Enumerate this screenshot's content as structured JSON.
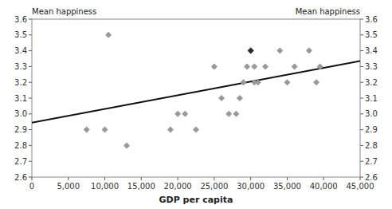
{
  "chart_data": {
    "type": "scatter",
    "xlabel": "GDP per capita",
    "ylabel": "Mean happiness",
    "y2label": "Mean happiness",
    "grid": false,
    "series": [
      {
        "type": "scatter",
        "color": "#999999",
        "marker": "diamond",
        "x": [
          7500,
          10000,
          10500,
          13000,
          19000,
          20000,
          21000,
          22500,
          25000,
          26000,
          27000,
          28000,
          28500,
          29000,
          29500,
          30000,
          30500,
          30500,
          31000,
          32000,
          34000,
          35000,
          36000,
          38000,
          39000,
          39500
        ],
        "values": [
          2.9,
          2.9,
          3.5,
          2.8,
          2.9,
          3.0,
          3.0,
          2.9,
          3.3,
          3.1,
          3.0,
          3.0,
          3.1,
          3.2,
          3.3,
          3.4,
          3.3,
          3.2,
          3.2,
          3.3,
          3.4,
          3.2,
          3.3,
          3.4,
          3.2,
          3.3
        ]
      },
      {
        "type": "scatter",
        "color": "#2b2b2b",
        "marker": "diamond",
        "x": [
          30000
        ],
        "values": [
          3.4
        ]
      },
      {
        "type": "line",
        "color": "#111111",
        "line_style": "solid",
        "x": [
          0,
          45000
        ],
        "values": [
          2.945,
          3.335
        ]
      }
    ],
    "xlim": [
      0,
      45000
    ],
    "xticks": [
      0,
      {
        "value": 5000,
        "label": "5,000"
      },
      {
        "value": 10000,
        "label": "10,000"
      },
      {
        "value": 15000,
        "label": "15,000"
      },
      {
        "value": 20000,
        "label": "20,000"
      },
      {
        "value": 25000,
        "label": "25,000"
      },
      {
        "value": 30000,
        "label": "30,000"
      },
      {
        "value": 35000,
        "label": "35,000"
      },
      {
        "value": 40000,
        "label": "40,000"
      },
      {
        "value": 45000,
        "label": "45,000"
      }
    ],
    "ylim": [
      2.6,
      3.6
    ],
    "yticks": [
      2.6,
      2.7,
      2.8,
      2.9,
      {
        "value": 3.0,
        "label": "3.0"
      },
      3.1,
      3.2,
      3.3,
      3.4,
      3.5,
      3.6
    ],
    "y2lim": [
      2.6,
      3.6
    ],
    "y2ticks": [
      2.6,
      2.7,
      2.8,
      2.9,
      {
        "value": 3.0,
        "label": "3.0"
      },
      3.1,
      3.2,
      3.3,
      3.4,
      3.5,
      3.6
    ]
  }
}
